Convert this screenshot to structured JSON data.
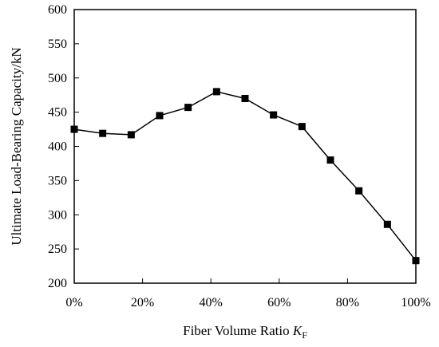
{
  "chart_data": {
    "type": "line",
    "xlabel": "Fiber Volume Ratio",
    "xlabel_symbol": "K",
    "xlabel_subscript": "F",
    "ylabel": "Ultimate Load-Bearing Capacity/kN",
    "xlim": [
      0,
      100
    ],
    "ylim": [
      200,
      600
    ],
    "x_ticks": [
      0,
      20,
      40,
      60,
      80,
      100
    ],
    "x_tick_labels": [
      "0%",
      "20%",
      "40%",
      "60%",
      "80%",
      "100%"
    ],
    "y_ticks": [
      200,
      250,
      300,
      350,
      400,
      450,
      500,
      550,
      600
    ],
    "y_tick_labels": [
      "200",
      "250",
      "300",
      "350",
      "400",
      "450",
      "500",
      "550",
      "600"
    ],
    "grid": false,
    "series": [
      {
        "color": "#000000",
        "marker": "square",
        "x": [
          0,
          8.33,
          16.67,
          25,
          33.33,
          41.67,
          50,
          58.33,
          66.67,
          75,
          83.33,
          91.67,
          100
        ],
        "y": [
          425,
          419,
          417,
          445,
          457,
          480,
          470,
          446,
          429,
          380,
          335,
          286,
          233
        ]
      }
    ]
  }
}
